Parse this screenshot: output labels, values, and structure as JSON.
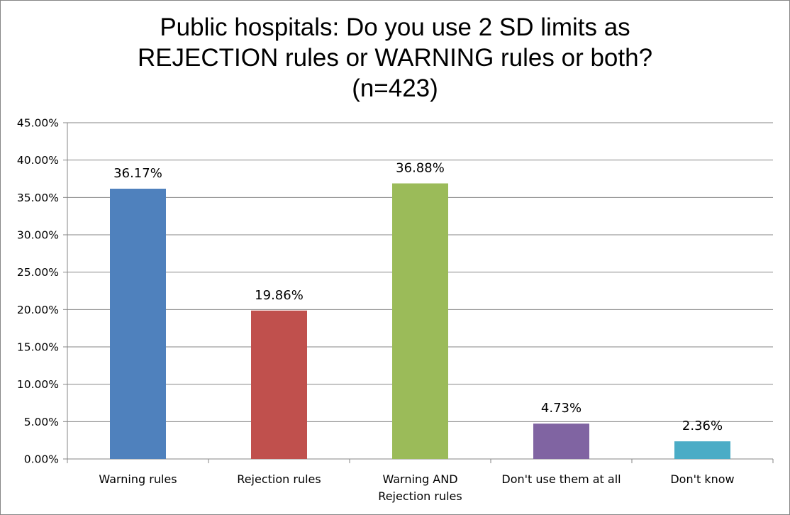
{
  "chart_data": {
    "type": "bar",
    "title_lines": [
      "Public hospitals: Do you use 2 SD limits as",
      "REJECTION rules or WARNING rules or both?",
      "(n=423)"
    ],
    "categories": [
      [
        "Warning rules"
      ],
      [
        "Rejection rules"
      ],
      [
        "Warning AND",
        "Rejection rules"
      ],
      [
        "Don't use them at all"
      ],
      [
        "Don't know"
      ]
    ],
    "values": [
      36.17,
      19.86,
      36.88,
      4.73,
      2.36
    ],
    "value_labels": [
      "36.17%",
      "19.86%",
      "36.88%",
      "4.73%",
      "2.36%"
    ],
    "colors": [
      "#4F81BD",
      "#C0504D",
      "#9BBB59",
      "#8064A2",
      "#4BACC6"
    ],
    "ylim": [
      0,
      45
    ],
    "ytick_step": 5,
    "ytick_labels": [
      "0.00%",
      "5.00%",
      "10.00%",
      "15.00%",
      "20.00%",
      "25.00%",
      "30.00%",
      "35.00%",
      "40.00%",
      "45.00%"
    ],
    "grid": true,
    "legend": "none",
    "xlabel": "",
    "ylabel": ""
  }
}
